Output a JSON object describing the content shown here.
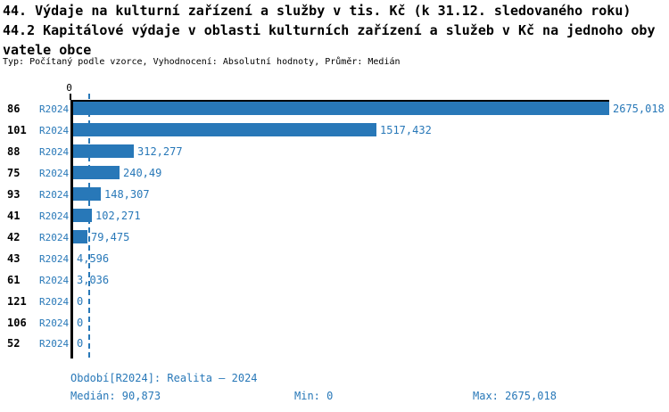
{
  "header": {
    "title_line1": "44. Výdaje na kulturní zařízení a služby v tis. Kč (k 31.12. sledovaného roku)",
    "title_line2": "44.2 Kapitálové výdaje v oblasti kulturních zařízení a služeb v Kč na jednoho oby",
    "title_line3": "vatele obce",
    "meta": "Typ: Počítaný podle vzorce, Vyhodnocení: Absolutní hodnoty, Průměr: Medián"
  },
  "colors": {
    "bar_blue": "#2878b8",
    "text_black": "#000000"
  },
  "chart_data": {
    "type": "bar",
    "orientation": "horizontal",
    "axis_zero_label": "0",
    "series_label": "R2024",
    "categories": [
      "86",
      "101",
      "88",
      "75",
      "93",
      "41",
      "42",
      "43",
      "61",
      "121",
      "106",
      "52"
    ],
    "values": [
      2675.018,
      1517.432,
      312.277,
      240.49,
      148.307,
      102.271,
      79.475,
      4.596,
      3.036,
      0,
      0,
      0
    ],
    "value_labels": [
      "2675,018",
      "1517,432",
      "312,277",
      "240,49",
      "148,307",
      "102,271",
      "79,475",
      "4,596",
      "3,036",
      "0",
      "0",
      "0"
    ],
    "xlim": [
      0,
      2675.018
    ],
    "median": 90.873,
    "median_label": "90,873",
    "grid": false,
    "legend": false
  },
  "footer": {
    "period": "Období[R2024]: Realita – 2024",
    "median": "Medián: 90,873",
    "min": "Min: 0",
    "max": "Max: 2675,018"
  }
}
